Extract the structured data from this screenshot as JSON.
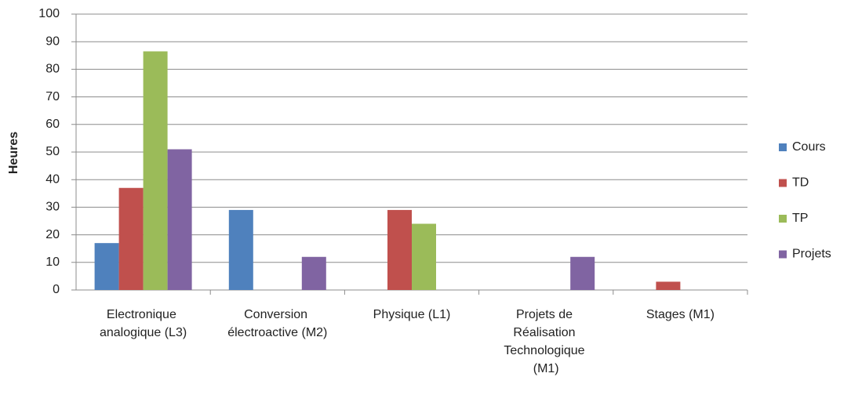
{
  "chart_data": {
    "type": "bar",
    "y_label": "Heures",
    "categories": [
      "Electronique analogique (L3)",
      "Conversion électroactive (M2)",
      "Physique (L1)",
      "Projets de Réalisation Technologique (M1)",
      "Stages (M1)"
    ],
    "series": [
      {
        "name": "Cours",
        "color": "#4f81bd",
        "values": [
          17,
          29,
          0,
          0,
          0
        ]
      },
      {
        "name": "TD",
        "color": "#c0504d",
        "values": [
          37,
          0,
          29,
          0,
          3
        ]
      },
      {
        "name": "TP",
        "color": "#9bbb59",
        "values": [
          86.5,
          0,
          24,
          0,
          0
        ]
      },
      {
        "name": "Projets",
        "color": "#8064a2",
        "values": [
          51,
          12,
          0,
          12,
          0
        ]
      }
    ],
    "ylim": [
      0,
      100
    ],
    "yticks": [
      0,
      10,
      20,
      30,
      40,
      50,
      60,
      70,
      80,
      90,
      100
    ],
    "grid": true,
    "legend": "right"
  }
}
